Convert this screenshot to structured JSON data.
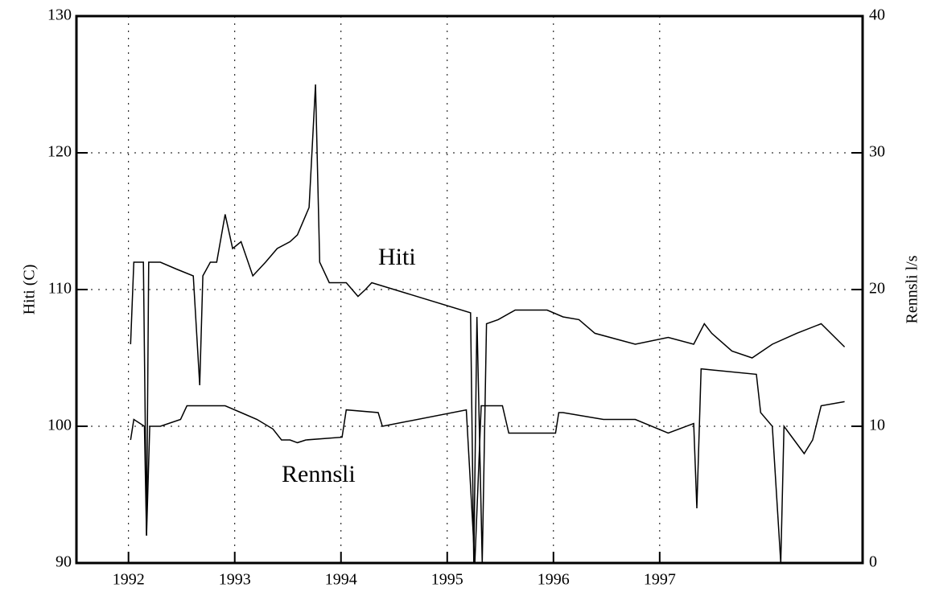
{
  "chart_data": {
    "type": "line",
    "ylabel": "Hiti (C)",
    "y2label": "Rennsli l/s",
    "xlim": [
      1991.51,
      1998.91
    ],
    "xticks": [
      {
        "value": 1992,
        "label": "1992"
      },
      {
        "value": 1993,
        "label": "1993"
      },
      {
        "value": 1994,
        "label": "1994"
      },
      {
        "value": 1995,
        "label": "1995"
      },
      {
        "value": 1996,
        "label": "1996"
      },
      {
        "value": 1997,
        "label": "1997"
      }
    ],
    "ylim": [
      90,
      130
    ],
    "yticks": [
      90,
      100,
      110,
      120,
      130
    ],
    "y2lim": [
      0,
      40
    ],
    "y2ticks": [
      0,
      10,
      20,
      30,
      40
    ],
    "grid": true,
    "annotations": [
      {
        "text": "Hiti"
      },
      {
        "text": "Rennsli"
      }
    ],
    "series": [
      {
        "name": "Hiti",
        "color": "#000000",
        "x": [
          1992.02,
          1992.05,
          1992.14,
          1992.17,
          1992.19,
          1992.3,
          1992.45,
          1992.61,
          1992.67,
          1992.7,
          1992.77,
          1992.83,
          1992.91,
          1992.98,
          1993.06,
          1993.17,
          1993.29,
          1993.4,
          1993.52,
          1993.59,
          1993.7,
          1993.76,
          1993.8,
          1993.89,
          1994.05,
          1994.16,
          1994.23,
          1994.29,
          1995.22,
          1995.25,
          1995.28,
          1995.33,
          1995.37,
          1995.48,
          1995.64,
          1995.94,
          1996.09,
          1996.24,
          1996.39,
          1996.77,
          1997.08,
          1997.32,
          1997.42,
          1997.49,
          1997.68,
          1997.87,
          1998.06,
          1998.29,
          1998.52,
          1998.74
        ],
        "values": [
          106,
          112,
          112,
          92,
          112,
          112,
          111.5,
          111,
          103,
          111,
          112,
          112,
          115.5,
          113,
          113.5,
          111,
          112,
          113,
          113.5,
          114,
          116,
          125,
          112,
          110.5,
          110.5,
          109.5,
          110,
          110.5,
          108.3,
          90,
          108,
          90,
          107.5,
          107.8,
          108.5,
          108.5,
          108,
          107.8,
          106.8,
          106,
          106.5,
          106,
          107.5,
          106.8,
          105.5,
          105,
          106,
          106.8,
          107.5,
          105.8
        ]
      },
      {
        "name": "Rennsli",
        "color": "#000000",
        "axis": "y2",
        "x": [
          1992.02,
          1992.05,
          1992.15,
          1992.17,
          1992.2,
          1992.3,
          1992.49,
          1992.55,
          1992.91,
          1993.06,
          1993.21,
          1993.36,
          1993.44,
          1993.52,
          1993.59,
          1993.67,
          1994.01,
          1994.05,
          1994.35,
          1994.39,
          1995.18,
          1995.26,
          1995.32,
          1995.52,
          1995.58,
          1996.02,
          1996.05,
          1996.09,
          1996.47,
          1996.77,
          1997.08,
          1997.32,
          1997.35,
          1997.39,
          1997.91,
          1997.95,
          1998.06,
          1998.14,
          1998.17,
          1998.36,
          1998.44,
          1998.52,
          1998.74
        ],
        "values": [
          9,
          10.5,
          10,
          2,
          10,
          10,
          10.5,
          11.5,
          11.5,
          11,
          10.5,
          9.8,
          9,
          9,
          8.8,
          9,
          9.2,
          11.2,
          11,
          10,
          11.2,
          0,
          11.5,
          11.5,
          9.5,
          9.5,
          11,
          11,
          10.5,
          10.5,
          9.5,
          10.2,
          4,
          14.2,
          13.8,
          11,
          10,
          0,
          10,
          8,
          9,
          11.5,
          11.8
        ]
      }
    ]
  }
}
